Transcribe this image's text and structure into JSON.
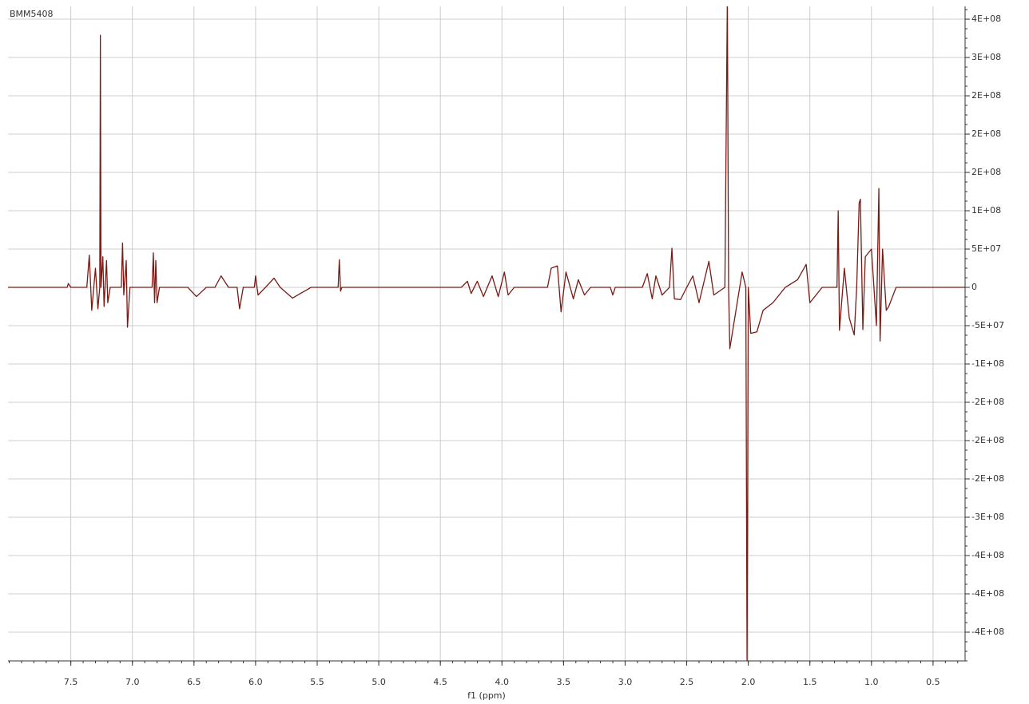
{
  "chart_data": {
    "type": "line",
    "title": "BMM5408",
    "x_label": "f1 (ppm)",
    "color": "#7a1a14",
    "grid": true,
    "xlim": [
      8.01,
      0.24
    ],
    "ylim": [
      366700000,
      -487500000
    ],
    "xticks": [
      7.5,
      {
        "value": 7,
        "label": "7.0"
      },
      6.5,
      {
        "value": 6,
        "label": "6.0"
      },
      5.5,
      {
        "value": 5,
        "label": "5.0"
      },
      4.5,
      {
        "value": 4,
        "label": "4.0"
      },
      3.5,
      {
        "value": 3,
        "label": "3.0"
      },
      2.5,
      {
        "value": 2,
        "label": "2.0"
      },
      1.5,
      {
        "value": 1,
        "label": "1.0"
      },
      0.5
    ],
    "yticks": [
      {
        "value": 350000000,
        "label": "4E+08"
      },
      {
        "value": 300000000,
        "label": "3E+08"
      },
      {
        "value": 250000000,
        "label": "2E+08"
      },
      {
        "value": 200000000,
        "label": "2E+08"
      },
      {
        "value": 150000000,
        "label": "2E+08"
      },
      {
        "value": 100000000,
        "label": "1E+08"
      },
      {
        "value": 50000000,
        "label": "5E+07"
      },
      0,
      {
        "value": -50000000,
        "label": "-5E+07"
      },
      {
        "value": -100000000,
        "label": "-1E+08"
      },
      {
        "value": -150000000,
        "label": "-2E+08"
      },
      {
        "value": -200000000,
        "label": "-2E+08"
      },
      {
        "value": -250000000,
        "label": "-2E+08"
      },
      {
        "value": -300000000,
        "label": "-3E+08"
      },
      {
        "value": -350000000,
        "label": "-4E+08"
      },
      {
        "value": -400000000,
        "label": "-4E+08"
      },
      {
        "value": -450000000,
        "label": "-4E+08"
      }
    ],
    "x": [
      8.01,
      7.53,
      7.52,
      7.5,
      7.37,
      7.35,
      7.33,
      7.3,
      7.28,
      7.265,
      7.26,
      7.255,
      7.24,
      7.23,
      7.21,
      7.2,
      7.18,
      7.09,
      7.08,
      7.07,
      7.05,
      7.04,
      7.02,
      6.84,
      6.83,
      6.82,
      6.81,
      6.8,
      6.78,
      6.55,
      6.48,
      6.4,
      6.33,
      6.28,
      6.22,
      6.15,
      6.13,
      6.1,
      6.01,
      6.0,
      5.98,
      5.92,
      5.85,
      5.8,
      5.7,
      5.55,
      5.33,
      5.32,
      5.31,
      5.3,
      4.33,
      4.28,
      4.25,
      4.2,
      4.15,
      4.08,
      4.03,
      3.98,
      3.95,
      3.9,
      3.63,
      3.6,
      3.55,
      3.52,
      3.48,
      3.42,
      3.38,
      3.33,
      3.28,
      3.12,
      3.1,
      3.08,
      2.86,
      2.82,
      2.78,
      2.75,
      2.7,
      2.64,
      2.62,
      2.6,
      2.55,
      2.5,
      2.45,
      2.4,
      2.32,
      2.28,
      2.19,
      2.17,
      2.16,
      2.15,
      2.1,
      2.05,
      2.02,
      2.01,
      2.0,
      1.98,
      1.93,
      1.88,
      1.8,
      1.7,
      1.6,
      1.53,
      1.5,
      1.4,
      1.28,
      1.27,
      1.26,
      1.22,
      1.18,
      1.14,
      1.12,
      1.1,
      1.09,
      1.07,
      1.05,
      1.0,
      0.96,
      0.94,
      0.93,
      0.91,
      0.88,
      0.86,
      0.8,
      0.24
    ],
    "values": [
      0,
      0,
      5000000,
      0,
      0,
      42000000,
      -30000000,
      25000000,
      -28000000,
      0,
      329000000,
      0,
      40000000,
      -25000000,
      35000000,
      -20000000,
      0,
      0,
      58000000,
      -10000000,
      35000000,
      -52000000,
      0,
      0,
      45000000,
      -20000000,
      35000000,
      -20000000,
      0,
      0,
      -12000000,
      0,
      0,
      15000000,
      0,
      0,
      -28000000,
      0,
      0,
      15000000,
      -10000000,
      0,
      12000000,
      0,
      -14000000,
      0,
      0,
      36000000,
      -5000000,
      0,
      0,
      8000000,
      -8000000,
      8000000,
      -12000000,
      15000000,
      -12000000,
      20000000,
      -10000000,
      0,
      0,
      25000000,
      28000000,
      -32000000,
      20000000,
      -15000000,
      10000000,
      -10000000,
      0,
      0,
      -10000000,
      0,
      0,
      18000000,
      -15000000,
      15000000,
      -10000000,
      0,
      51000000,
      -15000000,
      -16000000,
      0,
      15000000,
      -20000000,
      34000000,
      -10000000,
      0,
      380000000,
      0,
      -80000000,
      -30000000,
      20000000,
      0,
      -500000000,
      0,
      -60000000,
      -58000000,
      -30000000,
      -20000000,
      0,
      10000000,
      30000000,
      -20000000,
      0,
      0,
      100000000,
      -56000000,
      25000000,
      -40000000,
      -62000000,
      0,
      110000000,
      115000000,
      -55000000,
      40000000,
      50000000,
      -50000000,
      129000000,
      -70000000,
      50000000,
      -30000000,
      -25000000,
      0,
      0
    ]
  }
}
